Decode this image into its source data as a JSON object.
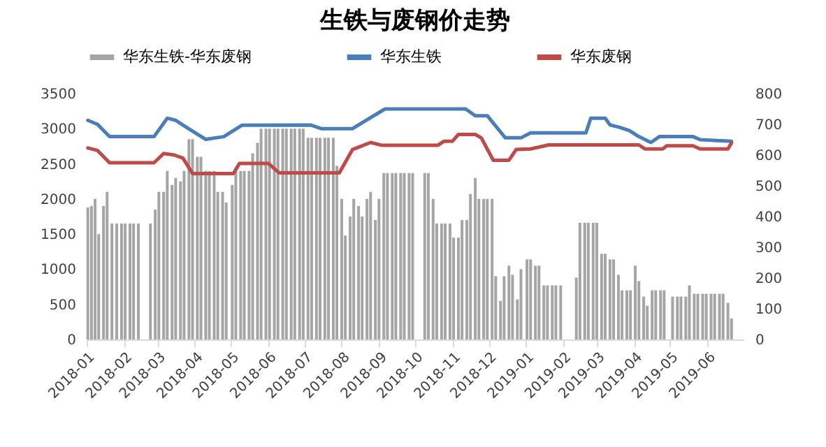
{
  "chart_data": {
    "type": "bar",
    "title": "生铁与废钢价走势",
    "legend": "top",
    "xlim": [
      "2018-01-01",
      "2019-07-01"
    ],
    "xticks": [
      "2018-01",
      "2018-02",
      "2018-03",
      "2018-04",
      "2018-05",
      "2018-06",
      "2018-07",
      "2018-08",
      "2018-09",
      "2018-10",
      "2018-11",
      "2018-12",
      "2019-01",
      "2019-02",
      "2019-03",
      "2019-04",
      "2019-05",
      "2019-06"
    ],
    "ylim": [
      0,
      3500
    ],
    "yticks": [
      0,
      500,
      1000,
      1500,
      2000,
      2500,
      3000,
      3500
    ],
    "y2lim": [
      0,
      800
    ],
    "y2ticks": [
      0,
      100,
      200,
      300,
      400,
      500,
      600,
      700,
      800
    ],
    "series": [
      {
        "name": "华东生铁-华东废钢",
        "color": "#a5a5a5",
        "x": [
          "2018-01-02",
          "2018-01-05",
          "2018-01-08",
          "2018-01-11",
          "2018-01-15",
          "2018-01-18",
          "2018-01-22",
          "2018-01-26",
          "2018-01-30",
          "2018-02-02",
          "2018-02-06",
          "2018-02-09",
          "2018-02-13",
          "2018-02-23",
          "2018-02-27",
          "2018-03-02",
          "2018-03-06",
          "2018-03-09",
          "2018-03-13",
          "2018-03-16",
          "2018-03-20",
          "2018-03-23",
          "2018-03-27",
          "2018-03-30",
          "2018-04-03",
          "2018-04-06",
          "2018-04-10",
          "2018-04-13",
          "2018-04-17",
          "2018-04-20",
          "2018-04-24",
          "2018-04-27",
          "2018-05-02",
          "2018-05-05",
          "2018-05-09",
          "2018-05-12",
          "2018-05-16",
          "2018-05-19",
          "2018-05-23",
          "2018-05-26",
          "2018-05-30",
          "2018-06-02",
          "2018-06-06",
          "2018-06-09",
          "2018-06-13",
          "2018-06-16",
          "2018-06-20",
          "2018-06-23",
          "2018-06-27",
          "2018-06-30",
          "2018-07-04",
          "2018-07-07",
          "2018-07-11",
          "2018-07-14",
          "2018-07-18",
          "2018-07-21",
          "2018-07-25",
          "2018-07-28",
          "2018-08-01",
          "2018-08-04",
          "2018-08-08",
          "2018-08-11",
          "2018-08-15",
          "2018-08-18",
          "2018-08-22",
          "2018-08-25",
          "2018-08-29",
          "2018-09-01",
          "2018-09-05",
          "2018-09-08",
          "2018-09-12",
          "2018-09-15",
          "2018-09-19",
          "2018-09-22",
          "2018-09-26",
          "2018-09-29",
          "2018-10-09",
          "2018-10-12",
          "2018-10-16",
          "2018-10-19",
          "2018-10-23",
          "2018-10-26",
          "2018-10-30",
          "2018-11-02",
          "2018-11-06",
          "2018-11-09",
          "2018-11-13",
          "2018-11-16",
          "2018-11-20",
          "2018-11-23",
          "2018-11-27",
          "2018-11-30",
          "2018-12-04",
          "2018-12-07",
          "2018-12-11",
          "2018-12-14",
          "2018-12-18",
          "2018-12-21",
          "2018-12-25",
          "2018-12-28",
          "2019-01-02",
          "2019-01-05",
          "2019-01-09",
          "2019-01-12",
          "2019-01-16",
          "2019-01-19",
          "2019-01-23",
          "2019-01-26",
          "2019-01-30",
          "2019-02-12",
          "2019-02-15",
          "2019-02-19",
          "2019-02-22",
          "2019-02-26",
          "2019-03-01",
          "2019-03-05",
          "2019-03-08",
          "2019-03-12",
          "2019-03-15",
          "2019-03-19",
          "2019-03-22",
          "2019-03-26",
          "2019-03-29",
          "2019-04-02",
          "2019-04-05",
          "2019-04-09",
          "2019-04-12",
          "2019-04-16",
          "2019-04-19",
          "2019-04-23",
          "2019-04-26",
          "2019-05-03",
          "2019-05-07",
          "2019-05-10",
          "2019-05-14",
          "2019-05-17",
          "2019-05-21",
          "2019-05-24",
          "2019-05-28",
          "2019-05-31",
          "2019-06-04",
          "2019-06-07",
          "2019-06-11",
          "2019-06-14",
          "2019-06-18",
          "2019-06-21"
        ],
        "values": [
          1880,
          1900,
          2000,
          1500,
          1900,
          2100,
          1650,
          1650,
          1650,
          1650,
          1650,
          1650,
          1650,
          1650,
          1850,
          2100,
          2100,
          2400,
          2200,
          2300,
          2250,
          2400,
          2850,
          2850,
          2600,
          2600,
          2400,
          2400,
          2400,
          2100,
          2100,
          1950,
          2200,
          2400,
          2400,
          2400,
          2400,
          2650,
          2800,
          3000,
          3000,
          3000,
          3000,
          3000,
          3000,
          3000,
          3000,
          3000,
          3000,
          3000,
          2870,
          2870,
          2870,
          2870,
          2870,
          2870,
          2870,
          2470,
          2000,
          1480,
          1750,
          2000,
          1900,
          1750,
          2000,
          2100,
          1700,
          2000,
          2370,
          2370,
          2370,
          2370,
          2370,
          2370,
          2370,
          2370,
          2370,
          2370,
          2000,
          1650,
          1650,
          1650,
          1650,
          1450,
          1450,
          1700,
          1700,
          2070,
          2300,
          2000,
          2000,
          2000,
          2000,
          900,
          550,
          900,
          1050,
          920,
          570,
          1000,
          1140,
          1140,
          1050,
          1050,
          770,
          770,
          770,
          770,
          770,
          880,
          1660,
          1660,
          1660,
          1660,
          1660,
          1220,
          1220,
          1140,
          1140,
          920,
          700,
          700,
          700,
          1050,
          830,
          610,
          480,
          700,
          700,
          700,
          700,
          610,
          610,
          610,
          610,
          770,
          650,
          650,
          650,
          650,
          650,
          650,
          650,
          650,
          520,
          300
        ]
      },
      {
        "name": "华东生铁",
        "type": "line",
        "axis": "y2",
        "color": "#4a7ebb",
        "x": [
          "2018-01-02",
          "2018-01-10",
          "2018-01-20",
          "2018-02-26",
          "2018-03-09",
          "2018-03-16",
          "2018-03-25",
          "2018-04-10",
          "2018-04-25",
          "2018-05-10",
          "2018-07-06",
          "2018-07-15",
          "2018-08-10",
          "2018-08-20",
          "2018-09-06",
          "2018-11-12",
          "2018-11-20",
          "2018-11-30",
          "2018-12-15",
          "2018-12-28",
          "2019-01-05",
          "2019-02-20",
          "2019-02-24",
          "2019-03-08",
          "2019-03-12",
          "2019-03-20",
          "2019-03-28",
          "2019-04-05",
          "2019-04-15",
          "2019-04-22",
          "2019-05-20",
          "2019-05-26",
          "2019-06-21"
        ],
        "values": [
          713,
          700,
          660,
          660,
          720,
          713,
          690,
          651,
          660,
          697,
          698,
          686,
          686,
          710,
          750,
          750,
          728,
          728,
          656,
          656,
          672,
          672,
          720,
          720,
          698,
          690,
          680,
          660,
          641,
          660,
          660,
          650,
          645
        ]
      },
      {
        "name": "华东废钢",
        "type": "line",
        "axis": "y2",
        "color": "#be4b48",
        "x": [
          "2018-01-02",
          "2018-01-10",
          "2018-01-20",
          "2018-02-26",
          "2018-03-06",
          "2018-03-15",
          "2018-03-22",
          "2018-03-30",
          "2018-05-03",
          "2018-05-08",
          "2018-06-01",
          "2018-06-10",
          "2018-07-30",
          "2018-08-10",
          "2018-08-25",
          "2018-09-03",
          "2018-10-20",
          "2018-10-25",
          "2018-11-01",
          "2018-11-06",
          "2018-11-20",
          "2018-11-25",
          "2018-12-05",
          "2018-12-18",
          "2018-12-24",
          "2019-01-05",
          "2019-01-20",
          "2019-04-05",
          "2019-04-10",
          "2019-04-25",
          "2019-04-28",
          "2019-05-20",
          "2019-05-26",
          "2019-06-18",
          "2019-06-21"
        ],
        "values": [
          623,
          615,
          575,
          575,
          605,
          600,
          590,
          540,
          540,
          573,
          573,
          542,
          542,
          618,
          641,
          632,
          632,
          645,
          645,
          667,
          667,
          656,
          583,
          583,
          618,
          620,
          633,
          633,
          620,
          620,
          630,
          630,
          620,
          620,
          640
        ]
      }
    ]
  }
}
